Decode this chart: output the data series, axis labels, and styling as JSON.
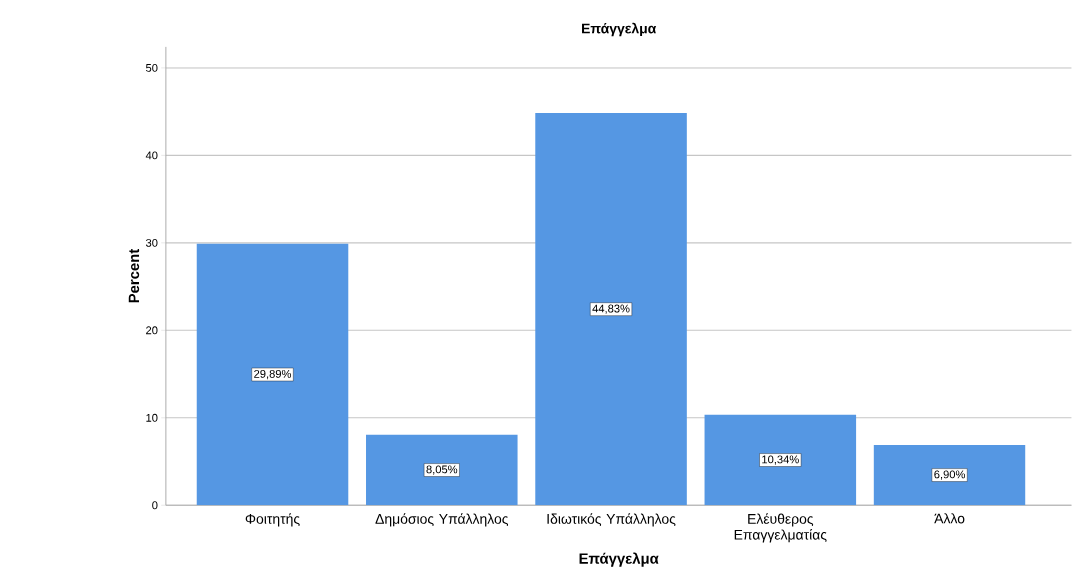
{
  "chart_data": {
    "type": "bar",
    "title": "Επάγγελμα",
    "xlabel": "Επάγγελμα",
    "ylabel": "Percent",
    "categories": [
      "Φοιτητής",
      "Δημόσιος Υπάλληλος",
      "Ιδιωτικός Υπάλληλος",
      "Ελέυθερος Επαγγελματίας",
      "Άλλο"
    ],
    "values": [
      29.89,
      8.05,
      44.83,
      10.34,
      6.9
    ],
    "value_labels": [
      "29,89%",
      "8,05%",
      "44,83%",
      "10,34%",
      "6,90%"
    ],
    "color": "#5597e3",
    "ylim": [
      0,
      52.4
    ],
    "yticks": [
      0,
      10,
      20,
      30,
      40,
      50
    ],
    "grid": "y"
  }
}
